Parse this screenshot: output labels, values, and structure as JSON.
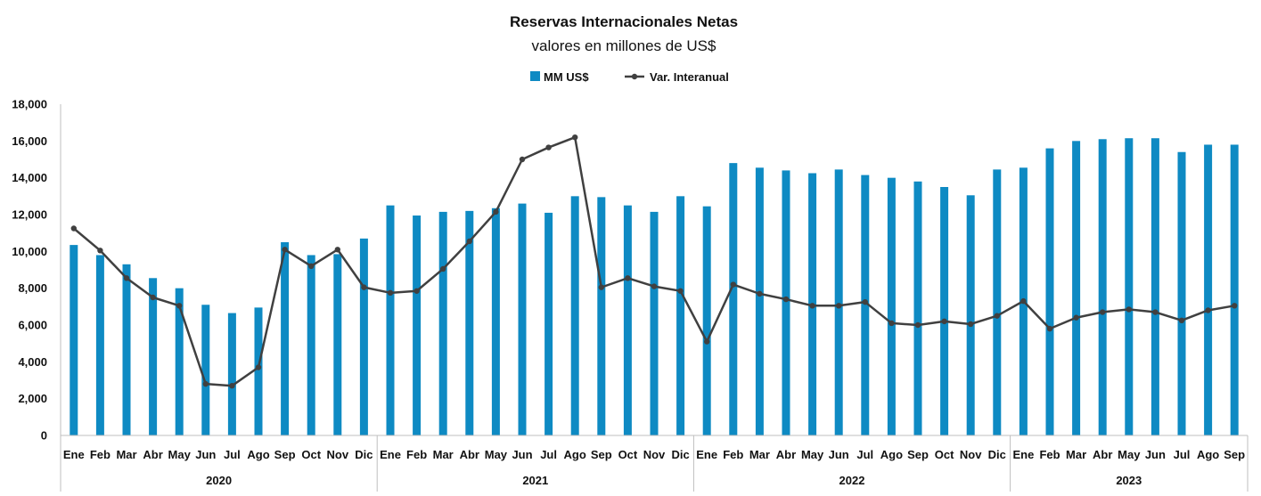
{
  "chart_data": {
    "type": "bar",
    "title": "Reservas Internacionales  Netas",
    "subtitle": "valores en millones de US$",
    "legend_position": "top-center",
    "grid": false,
    "ylim": [
      0,
      18000
    ],
    "yticks": [
      "0",
      "2,000",
      "4,000",
      "6,000",
      "8,000",
      "10,000",
      "12,000",
      "14,000",
      "16,000",
      "18,000"
    ],
    "colors": {
      "bars": "#0e8ac3",
      "line": "#404040"
    },
    "years": [
      "2020",
      "2021",
      "2022",
      "2023"
    ],
    "categories": [
      "Ene",
      "Feb",
      "Mar",
      "Abr",
      "May",
      "Jun",
      "Jul",
      "Ago",
      "Sep",
      "Oct",
      "Nov",
      "Dic",
      "Ene",
      "Feb",
      "Mar",
      "Abr",
      "May",
      "Jun",
      "Jul",
      "Ago",
      "Sep",
      "Oct",
      "Nov",
      "Dic",
      "Ene",
      "Feb",
      "Mar",
      "Abr",
      "May",
      "Jun",
      "Jul",
      "Ago",
      "Sep",
      "Oct",
      "Nov",
      "Dic",
      "Ene",
      "Feb",
      "Mar",
      "Abr",
      "May",
      "Jun",
      "Jul",
      "Ago",
      "Sep"
    ],
    "series": [
      {
        "name": "MM US$",
        "type": "bar",
        "values": [
          10350,
          9800,
          9300,
          8550,
          8000,
          7100,
          6650,
          6950,
          10500,
          9800,
          9850,
          10700,
          12500,
          11950,
          12150,
          12200,
          12350,
          12600,
          12100,
          13000,
          12950,
          12500,
          12150,
          13000,
          12450,
          14800,
          14550,
          14400,
          14250,
          14450,
          14150,
          14000,
          13800,
          13500,
          13050,
          14450,
          14550,
          15600,
          16000,
          16100,
          16150,
          16150,
          15400,
          15800,
          15800
        ]
      },
      {
        "name": "Var. Interanual",
        "type": "line",
        "values": [
          11250,
          10050,
          8550,
          7500,
          7050,
          2800,
          2700,
          3700,
          10100,
          9200,
          10100,
          8050,
          7750,
          7850,
          9050,
          10550,
          12150,
          15000,
          15650,
          16200,
          8050,
          8550,
          8100,
          7850,
          5100,
          8200,
          7700,
          7400,
          7050,
          7050,
          7250,
          6100,
          6000,
          6200,
          6050,
          6500,
          7300,
          5800,
          6400,
          6700,
          6850,
          6700,
          6250,
          6800,
          7050
        ]
      }
    ]
  }
}
